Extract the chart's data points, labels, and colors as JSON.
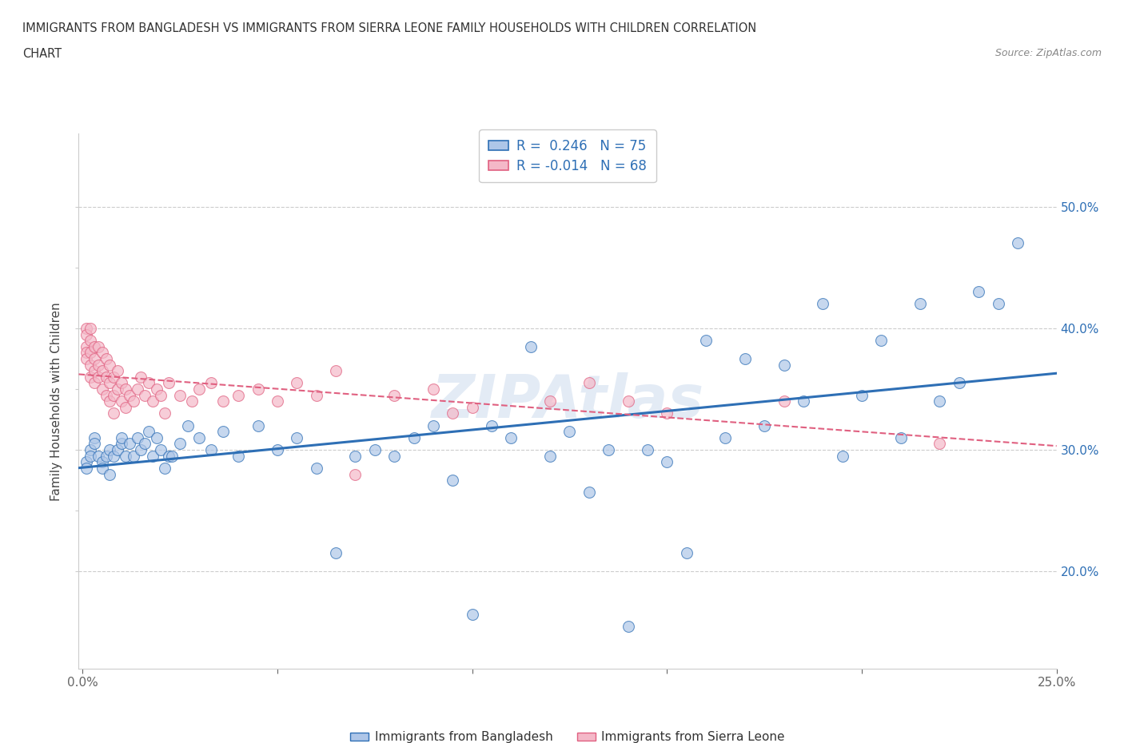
{
  "title_line1": "IMMIGRANTS FROM BANGLADESH VS IMMIGRANTS FROM SIERRA LEONE FAMILY HOUSEHOLDS WITH CHILDREN CORRELATION",
  "title_line2": "CHART",
  "source": "Source: ZipAtlas.com",
  "ylabel": "Family Households with Children",
  "xlim": [
    -0.001,
    0.25
  ],
  "ylim": [
    0.12,
    0.56
  ],
  "R_bangladesh": 0.246,
  "N_bangladesh": 75,
  "R_sierraleone": -0.014,
  "N_sierraleone": 68,
  "color_bangladesh": "#aec6e8",
  "color_sierraleone": "#f4b8c8",
  "line_color_bangladesh": "#2e6fb5",
  "line_color_sierraleone": "#e06080",
  "watermark": "ZIPAtlas",
  "bangladesh_x": [
    0.001,
    0.001,
    0.002,
    0.002,
    0.003,
    0.003,
    0.004,
    0.005,
    0.005,
    0.006,
    0.007,
    0.007,
    0.008,
    0.009,
    0.01,
    0.01,
    0.011,
    0.012,
    0.013,
    0.014,
    0.015,
    0.016,
    0.017,
    0.018,
    0.019,
    0.02,
    0.021,
    0.022,
    0.023,
    0.025,
    0.027,
    0.03,
    0.033,
    0.036,
    0.04,
    0.045,
    0.05,
    0.055,
    0.06,
    0.065,
    0.07,
    0.075,
    0.08,
    0.085,
    0.09,
    0.095,
    0.1,
    0.105,
    0.11,
    0.115,
    0.12,
    0.125,
    0.13,
    0.135,
    0.14,
    0.145,
    0.15,
    0.155,
    0.16,
    0.165,
    0.17,
    0.175,
    0.18,
    0.185,
    0.19,
    0.195,
    0.2,
    0.205,
    0.21,
    0.215,
    0.22,
    0.225,
    0.23,
    0.235,
    0.24
  ],
  "bangladesh_y": [
    0.29,
    0.285,
    0.3,
    0.295,
    0.31,
    0.305,
    0.295,
    0.29,
    0.285,
    0.295,
    0.28,
    0.3,
    0.295,
    0.3,
    0.305,
    0.31,
    0.295,
    0.305,
    0.295,
    0.31,
    0.3,
    0.305,
    0.315,
    0.295,
    0.31,
    0.3,
    0.285,
    0.295,
    0.295,
    0.305,
    0.32,
    0.31,
    0.3,
    0.315,
    0.295,
    0.32,
    0.3,
    0.31,
    0.285,
    0.215,
    0.295,
    0.3,
    0.295,
    0.31,
    0.32,
    0.275,
    0.165,
    0.32,
    0.31,
    0.385,
    0.295,
    0.315,
    0.265,
    0.3,
    0.155,
    0.3,
    0.29,
    0.215,
    0.39,
    0.31,
    0.375,
    0.32,
    0.37,
    0.34,
    0.42,
    0.295,
    0.345,
    0.39,
    0.31,
    0.42,
    0.34,
    0.355,
    0.43,
    0.42,
    0.47
  ],
  "sierraleone_x": [
    0.001,
    0.001,
    0.001,
    0.001,
    0.001,
    0.002,
    0.002,
    0.002,
    0.002,
    0.002,
    0.003,
    0.003,
    0.003,
    0.003,
    0.004,
    0.004,
    0.004,
    0.005,
    0.005,
    0.005,
    0.006,
    0.006,
    0.006,
    0.007,
    0.007,
    0.007,
    0.008,
    0.008,
    0.008,
    0.009,
    0.009,
    0.01,
    0.01,
    0.011,
    0.011,
    0.012,
    0.013,
    0.014,
    0.015,
    0.016,
    0.017,
    0.018,
    0.019,
    0.02,
    0.021,
    0.022,
    0.025,
    0.028,
    0.03,
    0.033,
    0.036,
    0.04,
    0.045,
    0.05,
    0.055,
    0.06,
    0.065,
    0.07,
    0.08,
    0.09,
    0.095,
    0.1,
    0.12,
    0.13,
    0.14,
    0.15,
    0.18,
    0.22
  ],
  "sierraleone_y": [
    0.4,
    0.395,
    0.385,
    0.38,
    0.375,
    0.4,
    0.39,
    0.38,
    0.37,
    0.36,
    0.385,
    0.375,
    0.365,
    0.355,
    0.385,
    0.37,
    0.36,
    0.38,
    0.365,
    0.35,
    0.375,
    0.36,
    0.345,
    0.37,
    0.355,
    0.34,
    0.36,
    0.345,
    0.33,
    0.365,
    0.35,
    0.355,
    0.34,
    0.35,
    0.335,
    0.345,
    0.34,
    0.35,
    0.36,
    0.345,
    0.355,
    0.34,
    0.35,
    0.345,
    0.33,
    0.355,
    0.345,
    0.34,
    0.35,
    0.355,
    0.34,
    0.345,
    0.35,
    0.34,
    0.355,
    0.345,
    0.365,
    0.28,
    0.345,
    0.35,
    0.33,
    0.335,
    0.34,
    0.355,
    0.34,
    0.33,
    0.34,
    0.305
  ]
}
